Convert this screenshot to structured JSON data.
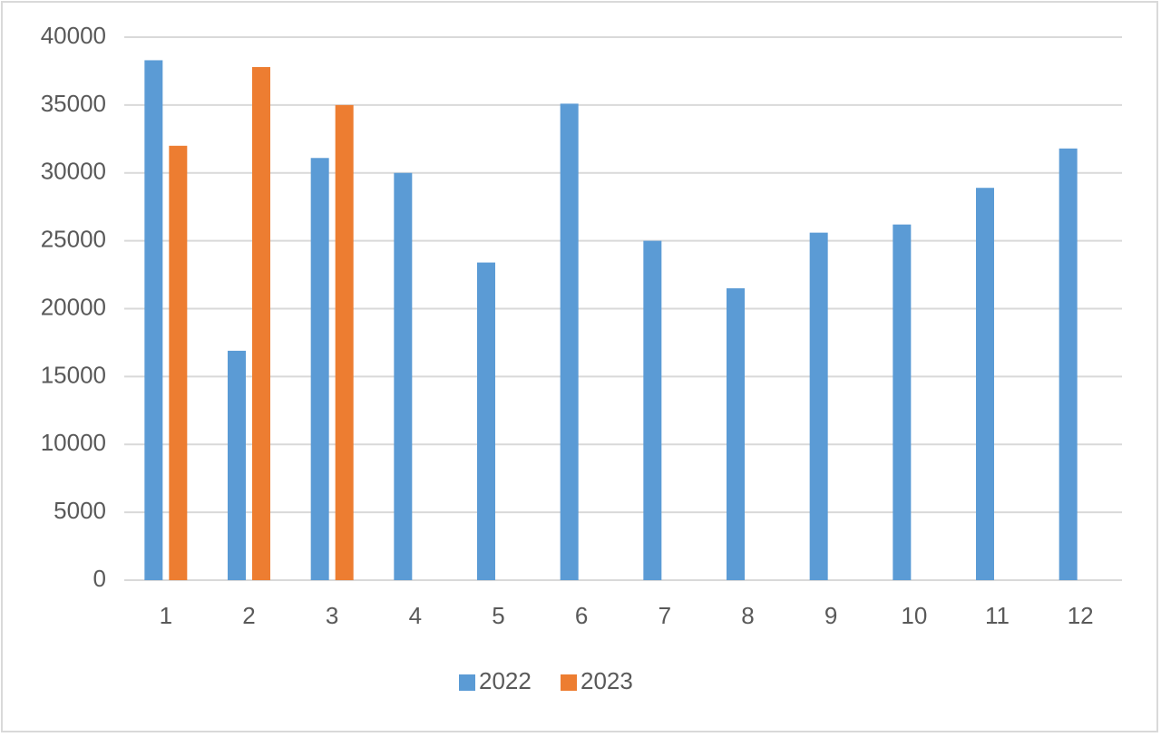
{
  "chart_data": {
    "type": "bar",
    "categories": [
      "1",
      "2",
      "3",
      "4",
      "5",
      "6",
      "7",
      "8",
      "9",
      "10",
      "11",
      "12"
    ],
    "series": [
      {
        "name": "2022",
        "color": "#5b9bd5",
        "values": [
          38300,
          16900,
          31100,
          30000,
          23400,
          35100,
          25000,
          21500,
          25600,
          26200,
          28900,
          31800
        ]
      },
      {
        "name": "2023",
        "color": "#ed7d31",
        "values": [
          32000,
          37800,
          35000,
          null,
          null,
          null,
          null,
          null,
          null,
          null,
          null,
          null
        ]
      }
    ],
    "ylim": [
      0,
      40000
    ],
    "yticks": [
      0,
      5000,
      10000,
      15000,
      20000,
      25000,
      30000,
      35000,
      40000
    ],
    "grid": true,
    "legend": "bottom"
  }
}
